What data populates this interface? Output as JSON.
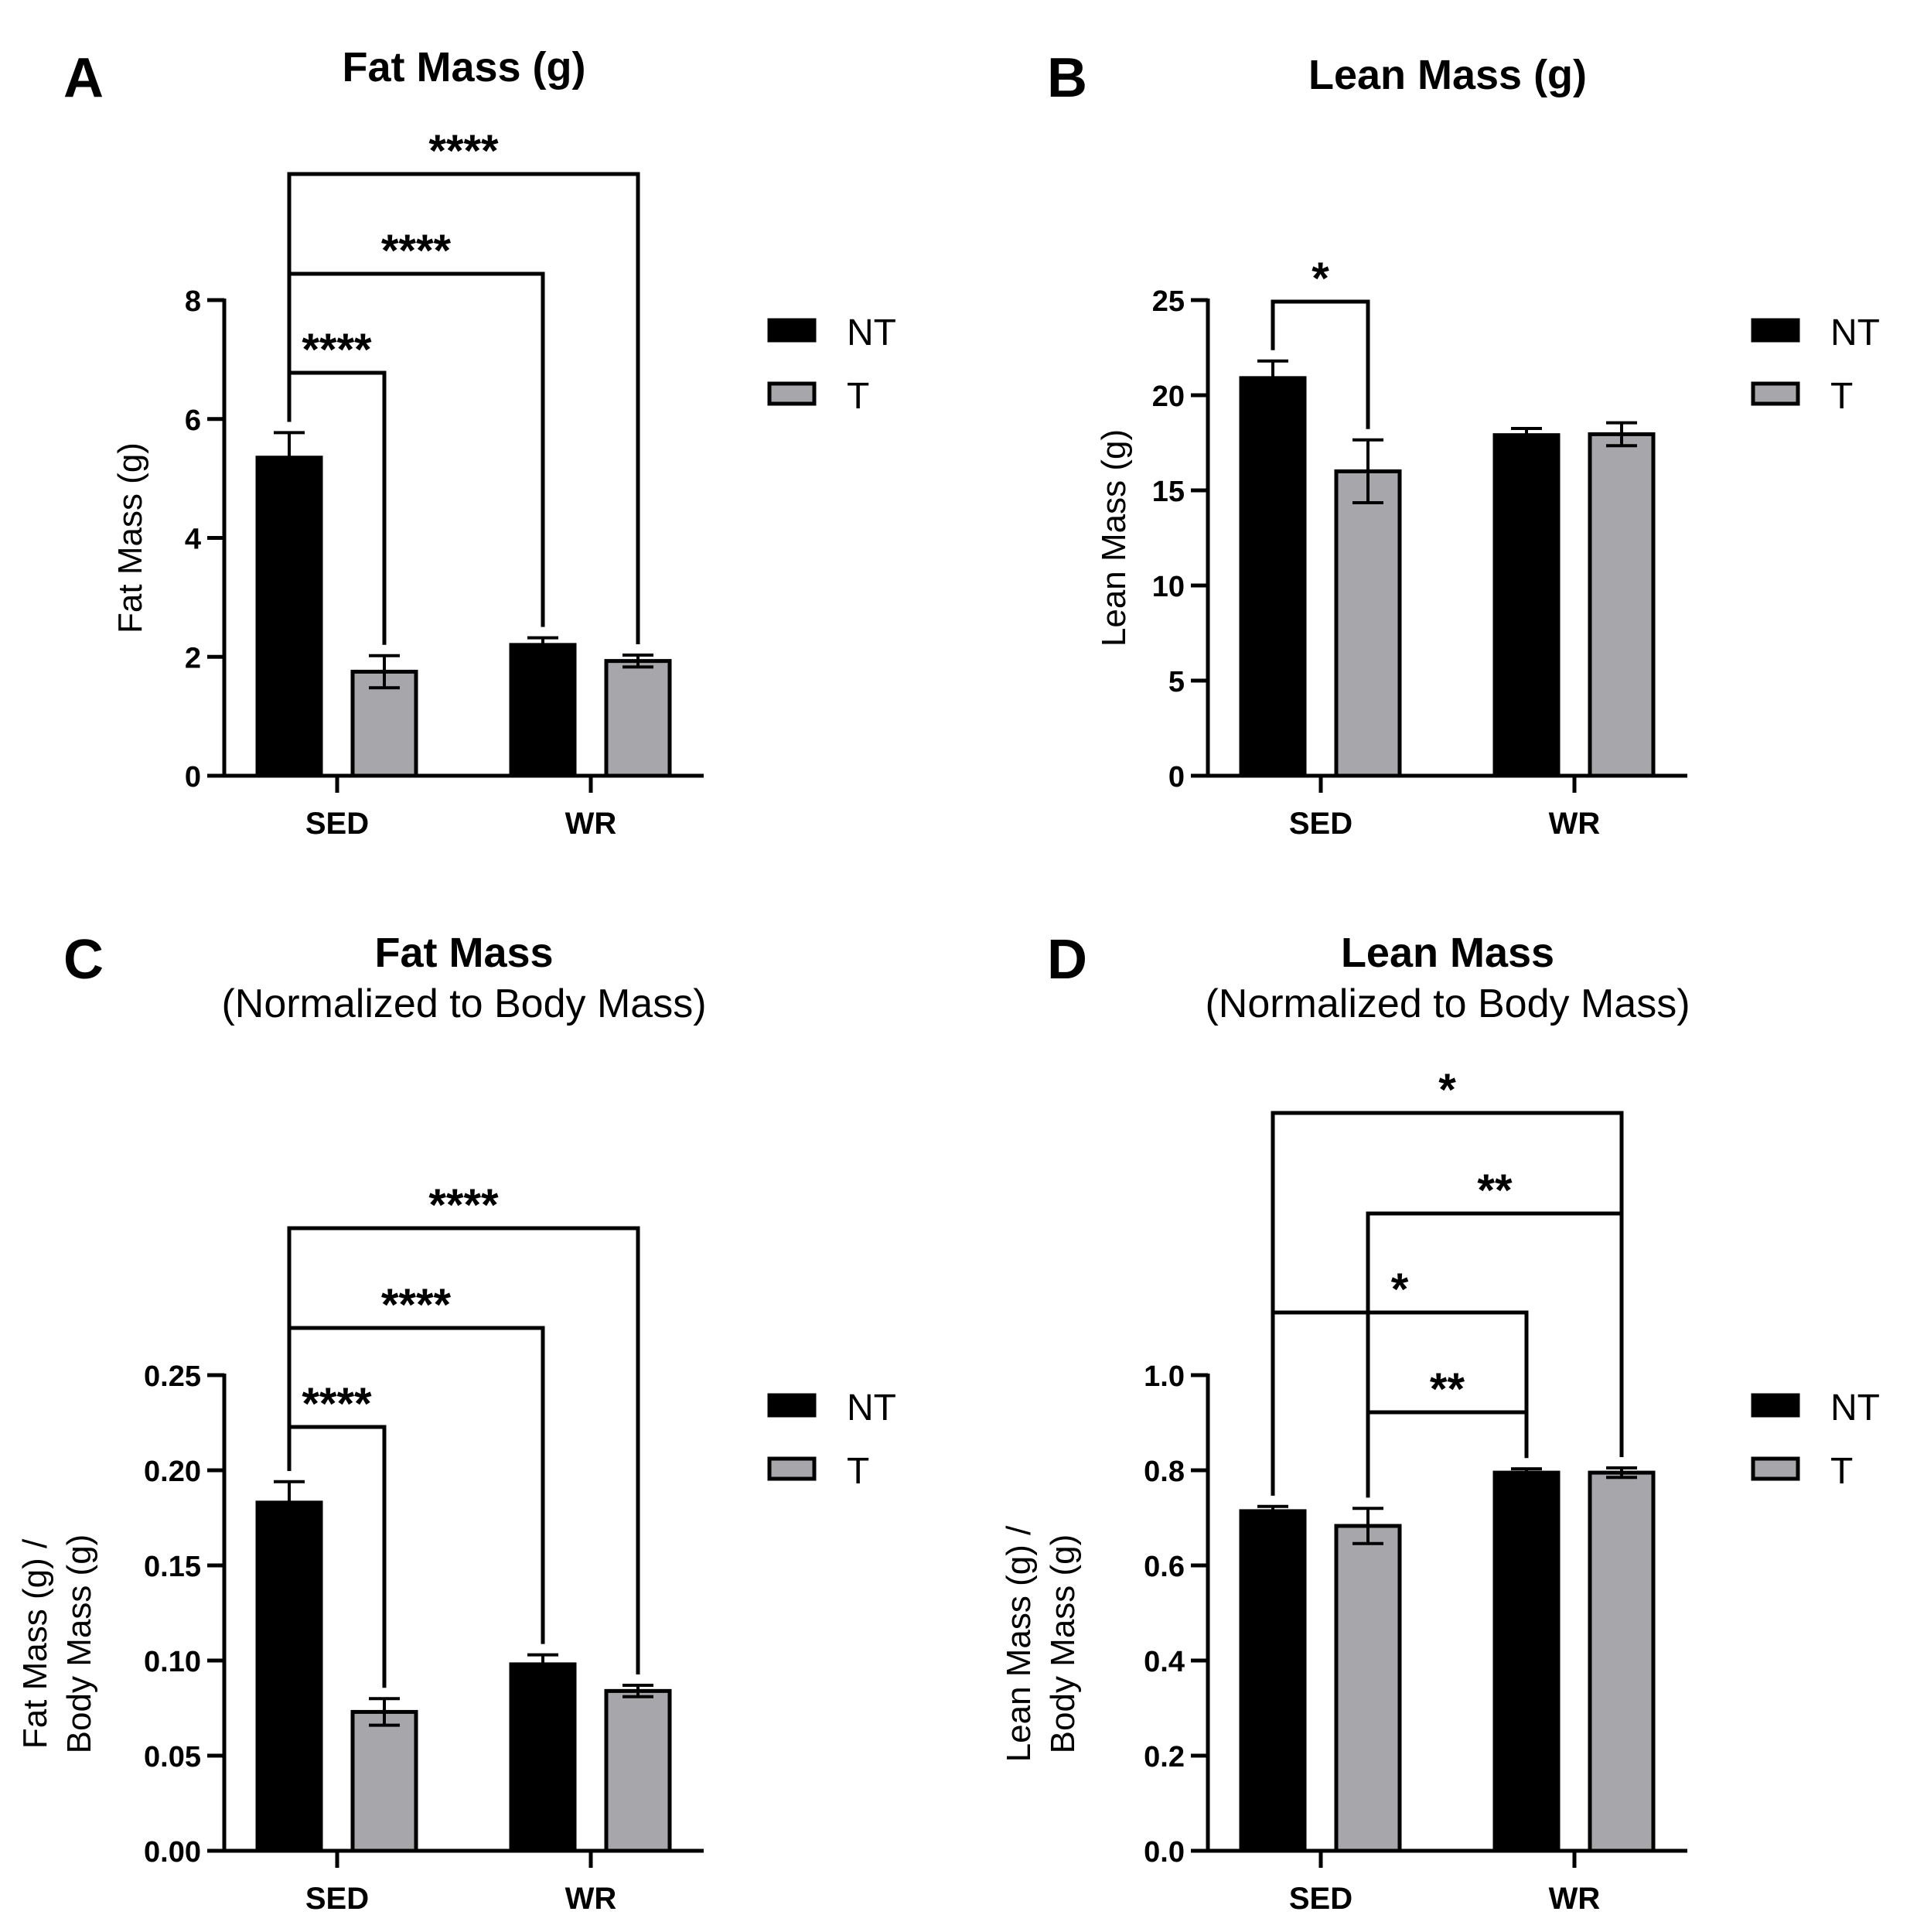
{
  "chart_data": [
    {
      "type": "bar",
      "panel": "A",
      "title": "Fat Mass (g)",
      "subtitle": "",
      "ylabel": [
        "Fat Mass (g)"
      ],
      "xlabel": "",
      "categories": [
        "SED",
        "WR"
      ],
      "ylim": [
        0,
        8
      ],
      "yticks": [
        "0",
        "2",
        "4",
        "6",
        "8"
      ],
      "tick_values": [
        0,
        2,
        4,
        6,
        8
      ],
      "series": [
        {
          "name": "NT",
          "values": [
            5.35,
            2.2
          ],
          "errors": [
            0.42,
            0.12
          ],
          "color": "#000000"
        },
        {
          "name": "T",
          "values": [
            1.75,
            1.93
          ],
          "errors": [
            0.27,
            0.1
          ],
          "color": "#a6a6ab"
        }
      ],
      "legend": {
        "placement": "right",
        "entries": [
          "NT",
          "T"
        ]
      },
      "significance": [
        {
          "from": "SED-NT",
          "to": "SED-T",
          "label": "****"
        },
        {
          "from": "SED-NT",
          "to": "WR-NT",
          "label": "****"
        },
        {
          "from": "SED-NT",
          "to": "WR-T",
          "label": "****"
        }
      ]
    },
    {
      "type": "bar",
      "panel": "B",
      "title": "Lean Mass (g)",
      "subtitle": "",
      "ylabel": [
        "Lean Mass (g)"
      ],
      "xlabel": "",
      "categories": [
        "SED",
        "WR"
      ],
      "ylim": [
        0,
        25
      ],
      "yticks": [
        "0",
        "5",
        "10",
        "15",
        "20",
        "25"
      ],
      "tick_values": [
        0,
        5,
        10,
        15,
        20,
        25
      ],
      "series": [
        {
          "name": "NT",
          "values": [
            20.9,
            17.9
          ],
          "errors": [
            0.9,
            0.35
          ],
          "color": "#000000"
        },
        {
          "name": "T",
          "values": [
            16.0,
            17.95
          ],
          "errors": [
            1.65,
            0.6
          ],
          "color": "#a6a6ab"
        }
      ],
      "legend": {
        "placement": "right",
        "entries": [
          "NT",
          "T"
        ]
      },
      "significance": [
        {
          "from": "SED-NT",
          "to": "SED-T",
          "label": "*"
        }
      ]
    },
    {
      "type": "bar",
      "panel": "C",
      "title": "Fat Mass",
      "subtitle": "(Normalized to Body Mass)",
      "ylabel": [
        "Fat Mass (g) /",
        "Body Mass (g)"
      ],
      "xlabel": "",
      "categories": [
        "SED",
        "WR"
      ],
      "ylim": [
        0,
        0.25
      ],
      "yticks": [
        "0.00",
        "0.05",
        "0.10",
        "0.15",
        "0.20",
        "0.25"
      ],
      "tick_values": [
        0,
        0.05,
        0.1,
        0.15,
        0.2,
        0.25
      ],
      "series": [
        {
          "name": "NT",
          "values": [
            0.183,
            0.098
          ],
          "errors": [
            0.011,
            0.005
          ],
          "color": "#000000"
        },
        {
          "name": "T",
          "values": [
            0.073,
            0.084
          ],
          "errors": [
            0.007,
            0.003
          ],
          "color": "#a6a6ab"
        }
      ],
      "legend": {
        "placement": "right",
        "entries": [
          "NT",
          "T"
        ]
      },
      "significance": [
        {
          "from": "SED-NT",
          "to": "SED-T",
          "label": "****"
        },
        {
          "from": "SED-NT",
          "to": "WR-NT",
          "label": "****"
        },
        {
          "from": "SED-NT",
          "to": "WR-T",
          "label": "****"
        }
      ]
    },
    {
      "type": "bar",
      "panel": "D",
      "title": "Lean Mass",
      "subtitle": "(Normalized to Body Mass)",
      "ylabel": [
        "Lean Mass (g) /",
        "Body Mass (g)"
      ],
      "xlabel": "",
      "categories": [
        "SED",
        "WR"
      ],
      "ylim": [
        0,
        1.0
      ],
      "yticks": [
        "0.0",
        "0.2",
        "0.4",
        "0.6",
        "0.8",
        "1.0"
      ],
      "tick_values": [
        0,
        0.2,
        0.4,
        0.6,
        0.8,
        1.0
      ],
      "series": [
        {
          "name": "NT",
          "values": [
            0.714,
            0.795
          ],
          "errors": [
            0.01,
            0.008
          ],
          "color": "#000000"
        },
        {
          "name": "T",
          "values": [
            0.683,
            0.795
          ],
          "errors": [
            0.037,
            0.01
          ],
          "color": "#a6a6ab"
        }
      ],
      "legend": {
        "placement": "right",
        "entries": [
          "NT",
          "T"
        ]
      },
      "significance": [
        {
          "from": "SED-T",
          "to": "WR-NT",
          "label": "**"
        },
        {
          "from": "SED-NT",
          "to": "WR-NT",
          "label": "*"
        },
        {
          "from": "SED-T",
          "to": "WR-T",
          "label": "**"
        },
        {
          "from": "SED-NT",
          "to": "WR-T",
          "label": "*"
        }
      ]
    }
  ]
}
